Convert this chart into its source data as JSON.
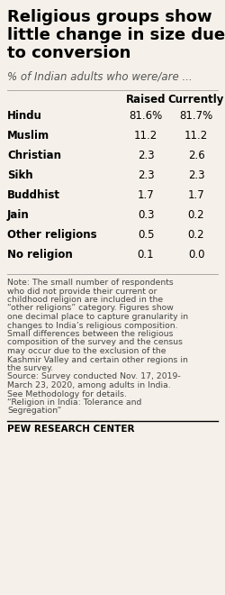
{
  "title_lines": [
    "Religious groups show",
    "little change in size due",
    "to conversion"
  ],
  "subtitle": "% of Indian adults who were/are ...",
  "col_header_raised": "Raised",
  "col_header_currently": "Currently",
  "religions": [
    "Hindu",
    "Muslim",
    "Christian",
    "Sikh",
    "Buddhist",
    "Jain",
    "Other religions",
    "No religion"
  ],
  "raised": [
    "81.6%",
    "11.2",
    "2.3",
    "2.3",
    "1.7",
    "0.3",
    "0.5",
    "0.1"
  ],
  "currently": [
    "81.7%",
    "11.2",
    "2.6",
    "2.3",
    "1.7",
    "0.2",
    "0.2",
    "0.0"
  ],
  "note_lines": [
    "Note: The small number of respondents",
    "who did not provide their current or",
    "childhood religion are included in the",
    "“other religions” category. Figures show",
    "one decimal place to capture granularity in",
    "changes to India’s religious composition.",
    "Small differences between the religious",
    "composition of the survey and the census",
    "may occur due to the exclusion of the",
    "Kashmir Valley and certain other regions in",
    "the survey.",
    "Source: Survey conducted Nov. 17, 2019-",
    "March 23, 2020, among adults in India.",
    "See Methodology for details.",
    "“Religion in India: Tolerance and",
    "Segregation”"
  ],
  "footer": "PEW RESEARCH CENTER",
  "bg_color": "#f5f1ea",
  "text_color": "#000000",
  "note_color": "#444444",
  "title_fontsize": 13,
  "subtitle_fontsize": 8.5,
  "data_fontsize": 8.5,
  "header_fontsize": 8.5,
  "note_fontsize": 6.7,
  "footer_fontsize": 7.5
}
